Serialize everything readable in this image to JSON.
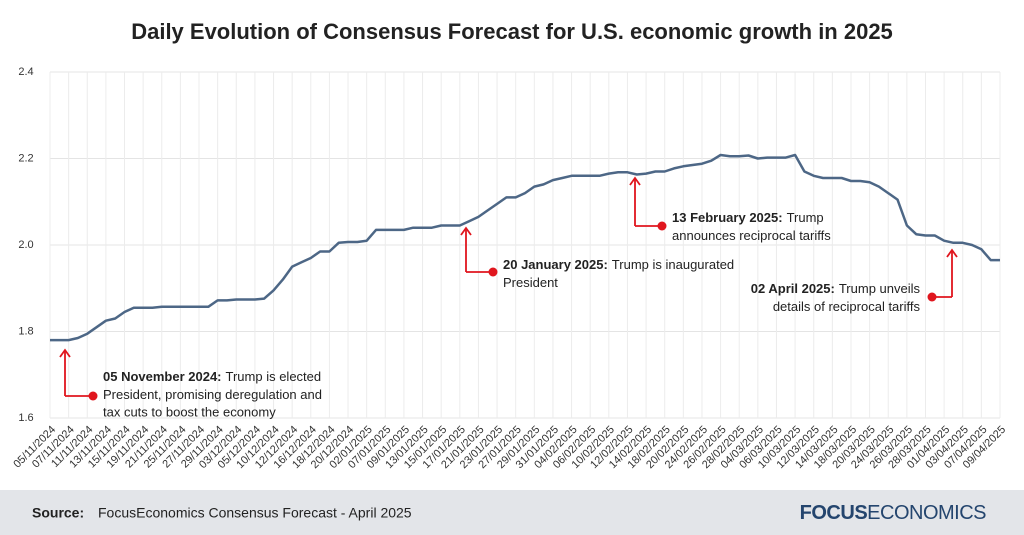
{
  "chart_data": {
    "type": "line",
    "title": "Daily Evolution of Consensus Forecast for U.S. economic growth in 2025",
    "categories": [
      "05/11/2024",
      null,
      "07/11/2024",
      null,
      "11/11/2024",
      null,
      "13/11/2024",
      null,
      "15/11/2024",
      null,
      "19/11/2024",
      null,
      "21/11/2024",
      null,
      "25/11/2024",
      null,
      "27/11/2024",
      null,
      "29/11/2024",
      null,
      "03/12/2024",
      null,
      "05/12/2024",
      null,
      "10/12/2024",
      null,
      "12/12/2024",
      null,
      "16/12/2024",
      null,
      "18/12/2024",
      null,
      "20/12/2024",
      null,
      "02/01/2025",
      null,
      "07/01/2025",
      null,
      "09/01/2025",
      null,
      "13/01/2025",
      null,
      "15/01/2025",
      null,
      "17/01/2025",
      null,
      "21/01/2025",
      null,
      "23/01/2025",
      null,
      "27/01/2025",
      null,
      "29/01/2025",
      null,
      "31/01/2025",
      null,
      "04/02/2025",
      null,
      "06/02/2025",
      null,
      "10/02/2025",
      null,
      "12/02/2025",
      null,
      "14/02/2025",
      null,
      "18/02/2025",
      null,
      "20/02/2025",
      null,
      "24/02/2025",
      null,
      "26/02/2025",
      null,
      "28/02/2025",
      null,
      "04/03/2025",
      null,
      "06/03/2025",
      null,
      "10/03/2025",
      null,
      "12/03/2025",
      null,
      "14/03/2025",
      null,
      "18/03/2025",
      null,
      "20/03/2025",
      null,
      "24/03/2025",
      null,
      "26/03/2025",
      null,
      "28/03/2025",
      null,
      "01/04/2025",
      null,
      "03/04/2025",
      null,
      "07/04/2025",
      null,
      "09/04/2025"
    ],
    "series": [
      {
        "color": "#4d6786",
        "values": [
          1.78,
          1.78,
          1.78,
          1.785,
          1.795,
          1.81,
          1.825,
          1.83,
          1.845,
          1.855,
          1.855,
          1.855,
          1.857,
          1.857,
          1.857,
          1.857,
          1.857,
          1.857,
          1.872,
          1.872,
          1.874,
          1.874,
          1.874,
          1.876,
          1.895,
          1.92,
          1.95,
          1.96,
          1.97,
          1.985,
          1.985,
          2.005,
          2.007,
          2.007,
          2.01,
          2.035,
          2.035,
          2.035,
          2.035,
          2.04,
          2.04,
          2.04,
          2.045,
          2.045,
          2.045,
          2.055,
          2.065,
          2.08,
          2.095,
          2.11,
          2.11,
          2.12,
          2.135,
          2.14,
          2.15,
          2.155,
          2.16,
          2.16,
          2.16,
          2.16,
          2.165,
          2.168,
          2.168,
          2.163,
          2.165,
          2.17,
          2.17,
          2.177,
          2.182,
          2.185,
          2.188,
          2.195,
          2.208,
          2.205,
          2.205,
          2.207,
          2.2,
          2.202,
          2.202,
          2.202,
          2.208,
          2.17,
          2.16,
          2.155,
          2.155,
          2.155,
          2.148,
          2.148,
          2.145,
          2.135,
          2.12,
          2.105,
          2.045,
          2.025,
          2.022,
          2.022,
          2.01,
          2.005,
          2.005,
          2.0,
          1.99,
          1.965,
          1.965
        ]
      }
    ],
    "ylim": [
      1.6,
      2.4
    ],
    "yticks": [
      1.6,
      1.8,
      {
        "value": 2,
        "label": "2.0"
      },
      2.2,
      2.4
    ],
    "grid": true,
    "annotation_color": "#e0161e",
    "annotations": [
      {
        "bold": "05 November 2024:",
        "lines": [
          "Trump is elected",
          "President, promising deregulation and",
          "tax cuts to boost the economy"
        ]
      },
      {
        "bold": "20 January 2025:",
        "lines": [
          "Trump is inaugurated",
          "President"
        ]
      },
      {
        "bold": "13 February 2025:",
        "lines": [
          "Trump",
          "announces reciprocal tariffs"
        ]
      },
      {
        "bold": "02 April 2025:",
        "lines": [
          "Trump unveils",
          "details of reciprocal tariffs"
        ]
      }
    ]
  },
  "footer": {
    "source_label": "Source:",
    "source": "FocusEconomics Consensus Forecast - April 2025",
    "logo_bold": "FOCUS",
    "logo_rest": "ECONOMICS"
  }
}
